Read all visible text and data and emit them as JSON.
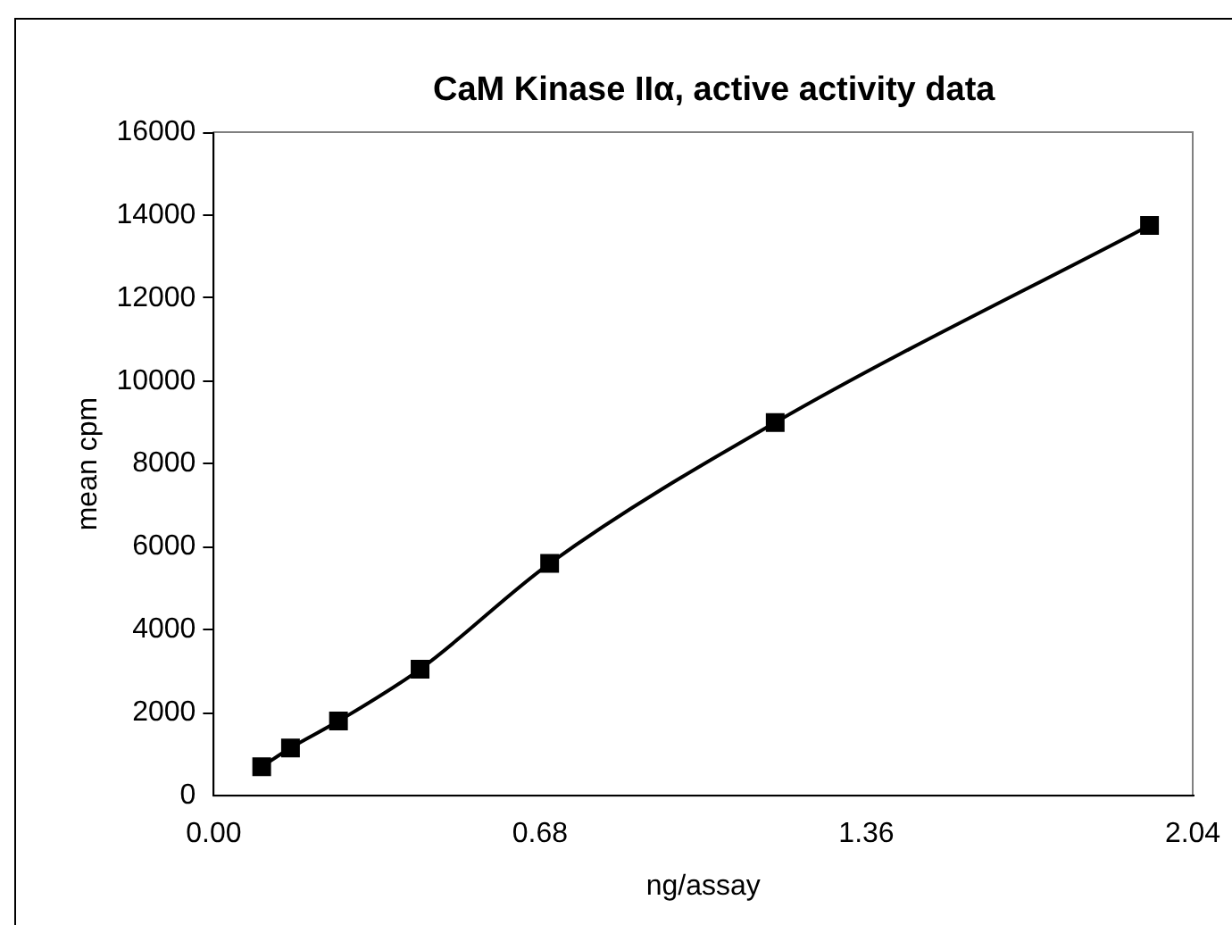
{
  "chart_data": {
    "type": "line",
    "title": "CaM Kinase IIα, active activity data",
    "xlabel": "ng/assay",
    "ylabel": "mean cpm",
    "x": [
      0.1,
      0.16,
      0.26,
      0.43,
      0.7,
      1.17,
      1.95
    ],
    "series": [
      {
        "color": "#000000",
        "values": [
          700,
          1150,
          1800,
          3050,
          5600,
          9000,
          13750
        ]
      }
    ],
    "xlim": [
      0,
      2.04
    ],
    "xticks": [
      {
        "value": 0,
        "label": "0.00"
      },
      {
        "value": 0.68,
        "label": "0.68"
      },
      {
        "value": 1.36,
        "label": "1.36"
      },
      {
        "value": 2.04,
        "label": "2.04"
      }
    ],
    "ylim": [
      0,
      16000
    ],
    "yticks": [
      0,
      2000,
      4000,
      6000,
      8000,
      10000,
      12000,
      14000,
      16000
    ],
    "grid": false,
    "legend": false,
    "marker": "square",
    "line_style": "solid"
  }
}
